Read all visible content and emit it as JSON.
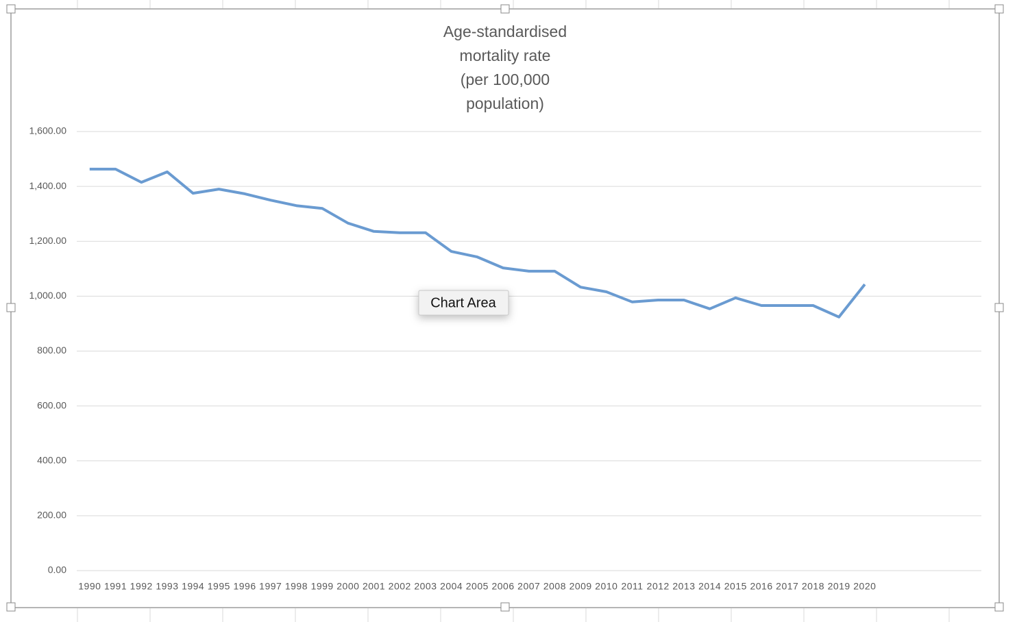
{
  "chart_data": {
    "type": "line",
    "title": [
      "Age-standardised",
      "mortality rate",
      "(per 100,000",
      "population)"
    ],
    "categories": [
      "1990",
      "1991",
      "1992",
      "1993",
      "1994",
      "1995",
      "1996",
      "1997",
      "1998",
      "1999",
      "2000",
      "2001",
      "2002",
      "2003",
      "2004",
      "2005",
      "2006",
      "2007",
      "2008",
      "2009",
      "2010",
      "2011",
      "2012",
      "2013",
      "2014",
      "2015",
      "2016",
      "2017",
      "2018",
      "2019",
      "2020"
    ],
    "series": [
      {
        "color": "#6a9bd1",
        "values": [
          1463,
          1463,
          1415,
          1453,
          1375,
          1390,
          1373,
          1350,
          1330,
          1320,
          1266,
          1236,
          1231,
          1231,
          1163,
          1143,
          1103,
          1091,
          1091,
          1033,
          1016,
          979,
          986,
          986,
          954,
          994,
          966,
          966,
          966,
          924,
          1043
        ]
      }
    ],
    "ylim": [
      0,
      1600
    ],
    "yticks": [
      {
        "value": 0,
        "label": "0.00"
      },
      {
        "value": 200,
        "label": "200.00"
      },
      {
        "value": 400,
        "label": "400.00"
      },
      {
        "value": 600,
        "label": "600.00"
      },
      {
        "value": 800,
        "label": "800.00"
      },
      {
        "value": 1000,
        "label": "1,000.00"
      },
      {
        "value": 1200,
        "label": "1,200.00"
      },
      {
        "value": 1400,
        "label": "1,400.00"
      },
      {
        "value": 1600,
        "label": "1,600.00"
      }
    ],
    "grid": true
  },
  "tooltip": "Chart Area"
}
